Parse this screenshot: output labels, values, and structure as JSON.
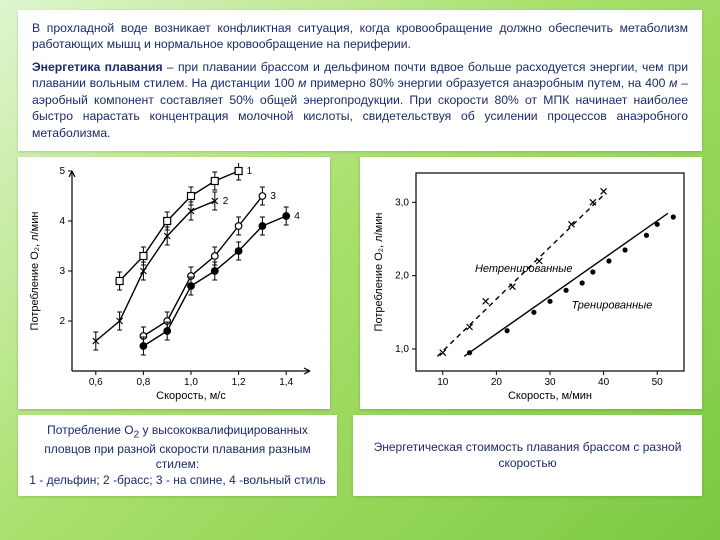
{
  "textBlock": {
    "p1": "В прохладной воде возникает конфликтная ситуация, когда кровообращение должно обеспечить метаболизм работающих мышц и нормальное кровообращение на периферии.",
    "p2_bold": "Энергетика плавания",
    "p2_rest": " – при плавании брассом и дельфином почти вдвое больше расходуется энергии, чем при плавании вольным стилем. На дистанции 100 ",
    "p2_em1": "м",
    "p2_mid": " примерно 80% энергии образуется анаэробным путем, на 400 ",
    "p2_em2": "м",
    "p2_end": " – аэробный компонент составляет 50% общей энергопродукции. При скорости 80% от МПК начинает наиболее быстро нарастать концентрация молочной кислоты, свидетельствуя об усилении процессов анаэробного метаболизма."
  },
  "chartLeft": {
    "type": "line",
    "xlabel": "Скорость, м/с",
    "ylabel": "Потребление О₂, л/мин",
    "xlim": [
      0.5,
      1.5
    ],
    "ylim": [
      1,
      5
    ],
    "xticks": [
      0.6,
      0.8,
      1.0,
      1.2,
      1.4
    ],
    "yticks": [
      2,
      3,
      4,
      5
    ],
    "background_color": "#ffffff",
    "axis_color": "#000000",
    "series": [
      {
        "id": 1,
        "marker": "square",
        "filled": false,
        "points": [
          [
            0.7,
            2.8
          ],
          [
            0.8,
            3.3
          ],
          [
            0.9,
            4.0
          ],
          [
            1.0,
            4.5
          ],
          [
            1.1,
            4.8
          ],
          [
            1.2,
            5.0
          ]
        ]
      },
      {
        "id": 2,
        "marker": "x",
        "filled": false,
        "points": [
          [
            0.6,
            1.6
          ],
          [
            0.7,
            2.0
          ],
          [
            0.8,
            3.0
          ],
          [
            0.9,
            3.7
          ],
          [
            1.0,
            4.2
          ],
          [
            1.1,
            4.4
          ]
        ]
      },
      {
        "id": 3,
        "marker": "circle",
        "filled": false,
        "points": [
          [
            0.8,
            1.7
          ],
          [
            0.9,
            2.0
          ],
          [
            1.0,
            2.9
          ],
          [
            1.1,
            3.3
          ],
          [
            1.2,
            3.9
          ],
          [
            1.3,
            4.5
          ]
        ]
      },
      {
        "id": 4,
        "marker": "circle",
        "filled": true,
        "points": [
          [
            0.8,
            1.5
          ],
          [
            0.9,
            1.8
          ],
          [
            1.0,
            2.7
          ],
          [
            1.1,
            3.0
          ],
          [
            1.2,
            3.4
          ],
          [
            1.3,
            3.9
          ],
          [
            1.4,
            4.1
          ]
        ]
      }
    ],
    "legend_labels": {
      "1": "1",
      "2": "2",
      "3": "3",
      "4": "4"
    },
    "error_bar_half": 0.18
  },
  "chartRight": {
    "type": "scatter+line",
    "xlabel": "Скорость, м/мин",
    "ylabel": "Потребление О₂, л/мин",
    "xlim": [
      5,
      55
    ],
    "ylim": [
      0.7,
      3.4
    ],
    "xticks": [
      10,
      20,
      30,
      40,
      50
    ],
    "yticks": [
      1.0,
      2.0,
      3.0
    ],
    "background_color": "#ffffff",
    "axis_color": "#000000",
    "series": [
      {
        "label": "Нетренированные",
        "dashed": true,
        "line": [
          [
            9,
            0.9
          ],
          [
            40,
            3.1
          ]
        ],
        "points": [
          [
            10,
            0.95
          ],
          [
            15,
            1.3
          ],
          [
            18,
            1.65
          ],
          [
            23,
            1.85
          ],
          [
            28,
            2.2
          ],
          [
            34,
            2.7
          ],
          [
            38,
            3.0
          ],
          [
            40,
            3.15
          ]
        ],
        "marker": "x"
      },
      {
        "label": "Тренированные",
        "dashed": false,
        "line": [
          [
            14,
            0.9
          ],
          [
            52,
            2.85
          ]
        ],
        "points": [
          [
            15,
            0.95
          ],
          [
            22,
            1.25
          ],
          [
            27,
            1.5
          ],
          [
            30,
            1.65
          ],
          [
            33,
            1.8
          ],
          [
            36,
            1.9
          ],
          [
            38,
            2.05
          ],
          [
            41,
            2.2
          ],
          [
            44,
            2.35
          ],
          [
            48,
            2.55
          ],
          [
            50,
            2.7
          ],
          [
            53,
            2.8
          ]
        ],
        "marker": "dot"
      }
    ]
  },
  "captions": {
    "left_1": "Потребление О",
    "left_sub": "2",
    "left_2": " у высококвалифицированных пловцов при разной скорости плавания разным стилем:",
    "left_3": "1 - дельфин; 2 -брасс; 3 - на спине, 4 -вольный стиль",
    "right": "Энергетическая стоимость плавания брассом с разной скоростью"
  }
}
